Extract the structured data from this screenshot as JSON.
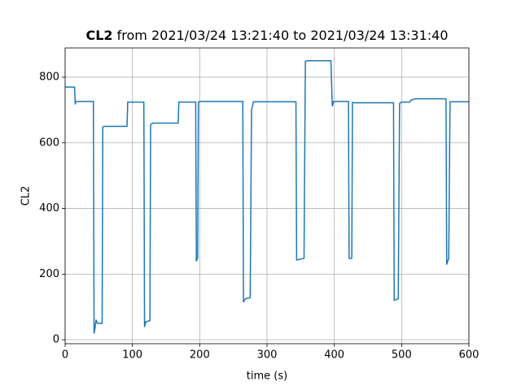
{
  "chart_data": {
    "type": "line",
    "title_bold": "CL2",
    "title": "from 2021/03/24 13:21:40 to 2021/03/24 13:31:40",
    "xlabel": "time (s)",
    "ylabel": "CL2",
    "x": [
      0,
      14,
      15,
      16,
      42,
      43,
      44,
      46,
      48,
      55,
      56,
      58,
      92,
      93,
      117,
      118,
      120,
      126,
      127,
      130,
      168,
      169,
      194,
      195,
      197,
      198,
      200,
      264,
      265,
      268,
      275,
      277,
      280,
      343,
      344,
      355,
      357,
      360,
      395,
      397,
      399,
      421,
      422,
      426,
      427,
      430,
      488,
      489,
      495,
      497,
      500,
      512,
      514,
      520,
      566,
      567,
      570,
      572,
      600
    ],
    "series": [
      {
        "name": "CL2",
        "color": "#1f77b4",
        "values": [
          770,
          770,
          718,
          726,
          726,
          20,
          30,
          60,
          50,
          50,
          648,
          650,
          650,
          724,
          724,
          40,
          55,
          58,
          655,
          660,
          660,
          724,
          724,
          240,
          250,
          724,
          726,
          726,
          115,
          125,
          128,
          700,
          725,
          725,
          243,
          248,
          848,
          850,
          850,
          712,
          726,
          726,
          248,
          248,
          723,
          722,
          722,
          120,
          125,
          720,
          724,
          724,
          730,
          734,
          734,
          230,
          248,
          725,
          725
        ]
      }
    ],
    "xlim": [
      0,
      600
    ],
    "xticks": [
      0,
      100,
      200,
      300,
      400,
      500,
      600
    ],
    "ylim": [
      -12,
      889
    ],
    "yticks": [
      0,
      200,
      400,
      600,
      800
    ],
    "grid": true
  }
}
